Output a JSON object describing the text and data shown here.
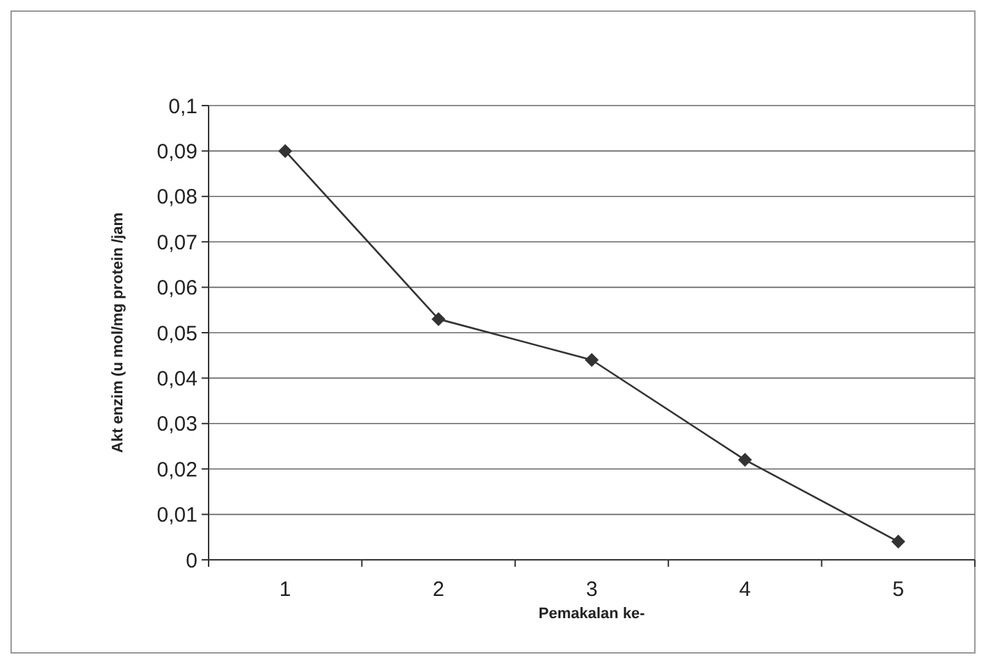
{
  "chart_data": {
    "type": "line",
    "xlabel": "Pemakalan ke-",
    "ylabel": "Akt enzim (u mol/mg protein /jam",
    "categories": [
      "1",
      "2",
      "3",
      "4",
      "5"
    ],
    "series": [
      {
        "color": "#333333",
        "values": [
          0.09,
          0.053,
          0.044,
          0.022,
          0.004
        ]
      }
    ],
    "ylim": [
      0,
      0.1
    ],
    "yticks": [
      0,
      {
        "value": 0.01,
        "label": "0,01"
      },
      {
        "value": 0.02,
        "label": "0,02"
      },
      {
        "value": 0.03,
        "label": "0,03"
      },
      {
        "value": 0.04,
        "label": "0,04"
      },
      {
        "value": 0.05,
        "label": "0,05"
      },
      {
        "value": 0.06,
        "label": "0,06"
      },
      {
        "value": 0.07,
        "label": "0,07"
      },
      {
        "value": 0.08,
        "label": "0,08"
      },
      {
        "value": 0.09,
        "label": "0,09"
      },
      {
        "value": 0.1,
        "label": "0,1"
      }
    ],
    "grid": "y",
    "marker": "diamond",
    "line_style": "solid"
  }
}
